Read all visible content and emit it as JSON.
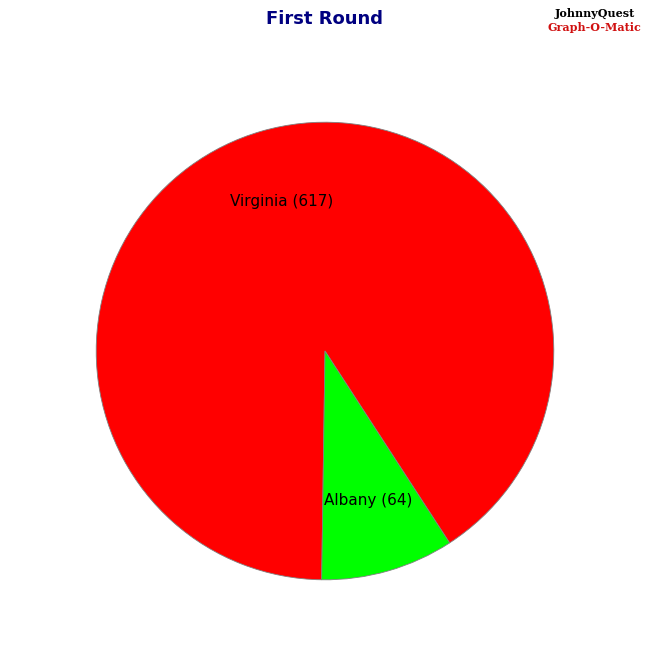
{
  "chart_data": {
    "type": "pie",
    "title": "First Round",
    "categories": [
      "Virginia (617)",
      "Albany (64)"
    ],
    "values": [
      617,
      64
    ],
    "colors": [
      "#ff0000",
      "#00ff00"
    ],
    "annotations": [
      "JohnnyQuest",
      "Graph-O-Matic"
    ]
  }
}
